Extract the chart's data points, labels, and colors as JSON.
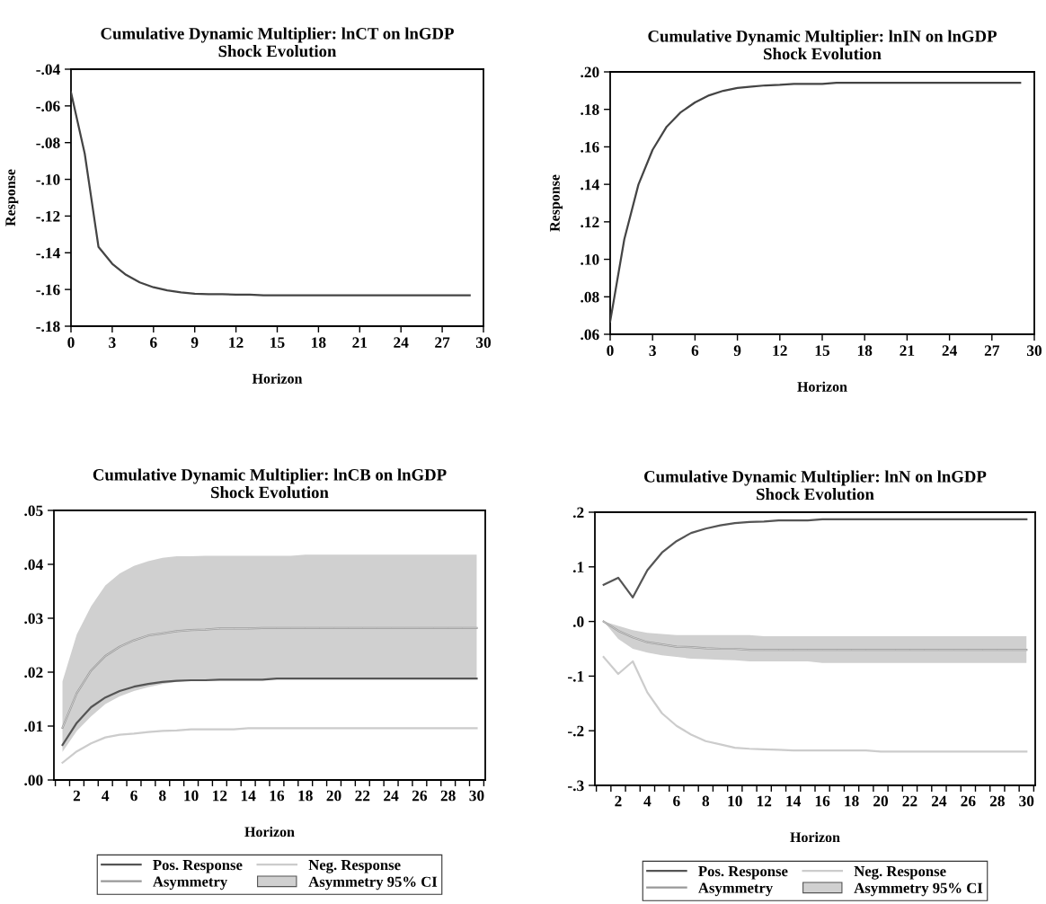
{
  "chart_data": [
    {
      "type": "line",
      "title": "Cumulative Dynamic Multiplier: lnCT on lnGDP",
      "subtitle": "Shock Evolution",
      "xlabel": "Horizon",
      "ylabel": "Response",
      "x": [
        0,
        1,
        2,
        3,
        4,
        5,
        6,
        7,
        8,
        9,
        10,
        11,
        12,
        13,
        14,
        15,
        16,
        17,
        18,
        19,
        20,
        21,
        22,
        23,
        24,
        25,
        26,
        27,
        28,
        29
      ],
      "series": [
        {
          "color": "#444444",
          "values": [
            -0.0526,
            -0.086,
            -0.1368,
            -0.146,
            -0.152,
            -0.1561,
            -0.1588,
            -0.1605,
            -0.1616,
            -0.1623,
            -0.1626,
            -0.1626,
            -0.1628,
            -0.1628,
            -0.1632,
            -0.1632,
            -0.1632,
            -0.1632,
            -0.1632,
            -0.1632,
            -0.1632,
            -0.1632,
            -0.1632,
            -0.1632,
            -0.1632,
            -0.1632,
            -0.1632,
            -0.1632,
            -0.1632,
            -0.1632
          ]
        }
      ],
      "xlim": [
        0,
        30
      ],
      "xticks": [
        0,
        3,
        6,
        9,
        12,
        15,
        18,
        21,
        24,
        27,
        30
      ],
      "ylim": [
        -0.18,
        -0.04
      ],
      "yticks": [
        {
          "value": -0.18,
          "label": "-.18"
        },
        {
          "value": -0.16,
          "label": "-.16"
        },
        {
          "value": -0.14,
          "label": "-.14"
        },
        {
          "value": -0.12,
          "label": "-.12"
        },
        {
          "value": -0.1,
          "label": "-.10"
        },
        {
          "value": -0.08,
          "label": "-.08"
        },
        {
          "value": -0.06,
          "label": "-.06"
        },
        {
          "value": -0.04,
          "label": "-.04"
        }
      ],
      "grid": false,
      "legend": false
    },
    {
      "type": "line",
      "title": "Cumulative Dynamic Multiplier: lnIN on lnGDP",
      "subtitle": "Shock Evolution",
      "xlabel": "Horizon",
      "ylabel": "Response",
      "x": [
        0,
        1,
        2,
        3,
        4,
        5,
        6,
        7,
        8,
        9,
        10,
        11,
        12,
        13,
        14,
        15,
        16,
        17,
        18,
        19,
        20,
        21,
        22,
        23,
        24,
        25,
        26,
        27,
        28,
        29
      ],
      "series": [
        {
          "color": "#444444",
          "values": [
            0.0668,
            0.1107,
            0.1399,
            0.1584,
            0.1708,
            0.1785,
            0.1837,
            0.1875,
            0.1899,
            0.1914,
            0.1921,
            0.1928,
            0.1931,
            0.1936,
            0.1936,
            0.1936,
            0.1942,
            0.1942,
            0.1942,
            0.1942,
            0.1942,
            0.1942,
            0.1942,
            0.1942,
            0.1942,
            0.1942,
            0.1942,
            0.1942,
            0.1942,
            0.1942
          ]
        }
      ],
      "xlim": [
        0,
        30
      ],
      "xticks": [
        0,
        3,
        6,
        9,
        12,
        15,
        18,
        21,
        24,
        27,
        30
      ],
      "ylim": [
        0.06,
        0.2
      ],
      "yticks": [
        {
          "value": 0.06,
          "label": ".06"
        },
        {
          "value": 0.08,
          "label": ".08"
        },
        {
          "value": 0.1,
          "label": ".10"
        },
        {
          "value": 0.12,
          "label": ".12"
        },
        {
          "value": 0.14,
          "label": ".14"
        },
        {
          "value": 0.16,
          "label": ".16"
        },
        {
          "value": 0.18,
          "label": ".18"
        },
        {
          "value": 0.2,
          "label": ".20"
        }
      ],
      "grid": false,
      "legend": false
    },
    {
      "type": "line",
      "title": "Cumulative Dynamic Multiplier: lnCB on lnGDP",
      "subtitle": "Shock Evolution",
      "xlabel": "Horizon",
      "x": [
        1,
        2,
        3,
        4,
        5,
        6,
        7,
        8,
        9,
        10,
        11,
        12,
        13,
        14,
        15,
        16,
        17,
        18,
        19,
        20,
        21,
        22,
        23,
        24,
        25,
        26,
        27,
        28,
        29,
        30
      ],
      "series": [
        {
          "name": "Pos. Response",
          "color": "#555555",
          "values": [
            0.0065,
            0.0106,
            0.0135,
            0.0153,
            0.0165,
            0.0173,
            0.0178,
            0.0182,
            0.0184,
            0.0185,
            0.0185,
            0.0186,
            0.0186,
            0.0186,
            0.0186,
            0.0188,
            0.0188,
            0.0188,
            0.0188,
            0.0188,
            0.0188,
            0.0188,
            0.0188,
            0.0188,
            0.0188,
            0.0188,
            0.0188,
            0.0188,
            0.0188,
            0.0188
          ]
        },
        {
          "name": "Neg. Response",
          "color": "#cccccc",
          "values": [
            0.0032,
            0.0053,
            0.0068,
            0.0079,
            0.0084,
            0.0086,
            0.0089,
            0.0091,
            0.0092,
            0.0094,
            0.0094,
            0.0094,
            0.0094,
            0.0096,
            0.0096,
            0.0096,
            0.0096,
            0.0096,
            0.0096,
            0.0096,
            0.0096,
            0.0096,
            0.0096,
            0.0096,
            0.0096,
            0.0096,
            0.0096,
            0.0096,
            0.0096,
            0.0096
          ]
        },
        {
          "name": "Asymmetry",
          "color": "#999999",
          "values": [
            0.0097,
            0.0161,
            0.0203,
            0.023,
            0.0247,
            0.0259,
            0.0268,
            0.0272,
            0.0276,
            0.0278,
            0.0279,
            0.0281,
            0.0281,
            0.0281,
            0.0282,
            0.0282,
            0.0282,
            0.0282,
            0.0282,
            0.0282,
            0.0282,
            0.0282,
            0.0282,
            0.0282,
            0.0282,
            0.0282,
            0.0282,
            0.0282,
            0.0282,
            0.0282
          ]
        },
        {
          "name": "Asymmetry 95% CI",
          "color": "#d0d0d0",
          "values": [
            0.0097,
            0.0161,
            0.0203,
            0.023,
            0.0247,
            0.0259,
            0.0268,
            0.0272,
            0.0276,
            0.0278,
            0.0279,
            0.0281,
            0.0281,
            0.0281,
            0.0282,
            0.0282,
            0.0282,
            0.0282,
            0.0282,
            0.0282,
            0.0282,
            0.0282,
            0.0282,
            0.0282,
            0.0282,
            0.0282,
            0.0282,
            0.0282,
            0.0282,
            0.0282
          ],
          "lower": [
            0.0052,
            0.0091,
            0.0118,
            0.0141,
            0.0155,
            0.0165,
            0.0172,
            0.0178,
            0.0182,
            0.0184,
            0.0185,
            0.0186,
            0.0186,
            0.0186,
            0.0186,
            0.0188,
            0.0188,
            0.0188,
            0.0188,
            0.0188,
            0.0188,
            0.0188,
            0.0188,
            0.0188,
            0.0188,
            0.0188,
            0.0188,
            0.0188,
            0.0188,
            0.0188
          ],
          "upper": [
            0.0183,
            0.027,
            0.0322,
            0.0361,
            0.0383,
            0.0397,
            0.0406,
            0.0412,
            0.0415,
            0.0415,
            0.0416,
            0.0416,
            0.0416,
            0.0416,
            0.0416,
            0.0416,
            0.0416,
            0.0418,
            0.0418,
            0.0418,
            0.0418,
            0.0418,
            0.0418,
            0.0418,
            0.0418,
            0.0418,
            0.0418,
            0.0418,
            0.0418,
            0.0418
          ]
        }
      ],
      "xlim": [
        0.4,
        30.6
      ],
      "xticks": [
        {
          "value": 0.5,
          "label": null
        },
        {
          "value": 1.5,
          "label": null
        },
        {
          "value": 2.5,
          "label": null
        },
        {
          "value": 3.5,
          "label": null
        },
        {
          "value": 4.5,
          "label": null
        },
        {
          "value": 5.5,
          "label": null
        },
        {
          "value": 6.5,
          "label": null
        },
        {
          "value": 7.5,
          "label": null
        },
        {
          "value": 8.5,
          "label": null
        },
        {
          "value": 9.5,
          "label": null
        },
        {
          "value": 10.5,
          "label": null
        },
        {
          "value": 11.5,
          "label": null
        },
        {
          "value": 12.5,
          "label": null
        },
        {
          "value": 13.5,
          "label": null
        },
        {
          "value": 14.5,
          "label": null
        },
        {
          "value": 15.5,
          "label": null
        },
        {
          "value": 16.5,
          "label": null
        },
        {
          "value": 17.5,
          "label": null
        },
        {
          "value": 18.5,
          "label": null
        },
        {
          "value": 19.5,
          "label": null
        },
        {
          "value": 20.5,
          "label": null
        },
        {
          "value": 21.5,
          "label": null
        },
        {
          "value": 22.5,
          "label": null
        },
        {
          "value": 23.5,
          "label": null
        },
        {
          "value": 24.5,
          "label": null
        },
        {
          "value": 25.5,
          "label": null
        },
        {
          "value": 26.5,
          "label": null
        },
        {
          "value": 27.5,
          "label": null
        },
        {
          "value": 28.5,
          "label": null
        },
        {
          "value": 29.5,
          "label": null
        },
        {
          "value": 30.5,
          "label": null
        },
        2,
        4,
        6,
        8,
        10,
        12,
        14,
        16,
        18,
        20,
        22,
        24,
        26,
        28,
        30
      ],
      "ylim": [
        0,
        0.05
      ],
      "yticks": [
        {
          "value": 0,
          "label": ".00"
        },
        {
          "value": 0.01,
          "label": ".01"
        },
        {
          "value": 0.02,
          "label": ".02"
        },
        {
          "value": 0.03,
          "label": ".03"
        },
        {
          "value": 0.04,
          "label": ".04"
        },
        {
          "value": 0.05,
          "label": ".05"
        }
      ],
      "grid": false,
      "legend": "bottom"
    },
    {
      "type": "line",
      "title": "Cumulative Dynamic Multiplier: lnN on lnGDP",
      "subtitle": "Shock Evolution",
      "xlabel": "Horizon",
      "x": [
        1,
        2,
        3,
        4,
        5,
        6,
        7,
        8,
        9,
        10,
        11,
        12,
        13,
        14,
        15,
        16,
        17,
        18,
        19,
        20,
        21,
        22,
        23,
        24,
        25,
        26,
        27,
        28,
        29,
        30
      ],
      "series": [
        {
          "name": "Pos. Response",
          "color": "#555555",
          "values": [
            0.067,
            0.08,
            0.044,
            0.094,
            0.126,
            0.147,
            0.162,
            0.17,
            0.176,
            0.18,
            0.182,
            0.183,
            0.185,
            0.185,
            0.185,
            0.187,
            0.187,
            0.187,
            0.187,
            0.187,
            0.187,
            0.187,
            0.187,
            0.187,
            0.187,
            0.187,
            0.187,
            0.187,
            0.187,
            0.187
          ]
        },
        {
          "name": "Neg. Response",
          "color": "#cccccc",
          "values": [
            -0.065,
            -0.096,
            -0.073,
            -0.13,
            -0.168,
            -0.191,
            -0.207,
            -0.219,
            -0.225,
            -0.231,
            -0.233,
            -0.234,
            -0.235,
            -0.236,
            -0.236,
            -0.236,
            -0.236,
            -0.236,
            -0.236,
            -0.238,
            -0.238,
            -0.238,
            -0.238,
            -0.238,
            -0.238,
            -0.238,
            -0.238,
            -0.238,
            -0.238,
            -0.238
          ]
        },
        {
          "name": "Asymmetry",
          "color": "#999999",
          "values": [
            0.0,
            -0.017,
            -0.029,
            -0.038,
            -0.042,
            -0.046,
            -0.047,
            -0.049,
            -0.05,
            -0.05,
            -0.052,
            -0.052,
            -0.052,
            -0.052,
            -0.052,
            -0.052,
            -0.052,
            -0.052,
            -0.052,
            -0.052,
            -0.052,
            -0.052,
            -0.052,
            -0.052,
            -0.052,
            -0.052,
            -0.052,
            -0.052,
            -0.052,
            -0.052
          ]
        },
        {
          "name": "Asymmetry 95% CI",
          "color": "#d0d0d0",
          "values": [
            0.0,
            -0.017,
            -0.029,
            -0.038,
            -0.042,
            -0.046,
            -0.047,
            -0.049,
            -0.05,
            -0.05,
            -0.052,
            -0.052,
            -0.052,
            -0.052,
            -0.052,
            -0.052,
            -0.052,
            -0.052,
            -0.052,
            -0.052,
            -0.052,
            -0.052,
            -0.052,
            -0.052,
            -0.052,
            -0.052,
            -0.052,
            -0.052,
            -0.052,
            -0.052
          ],
          "lower": [
            0.0,
            -0.032,
            -0.05,
            -0.057,
            -0.062,
            -0.065,
            -0.068,
            -0.069,
            -0.07,
            -0.071,
            -0.073,
            -0.073,
            -0.073,
            -0.073,
            -0.073,
            -0.076,
            -0.076,
            -0.076,
            -0.076,
            -0.076,
            -0.076,
            -0.076,
            -0.076,
            -0.076,
            -0.076,
            -0.076,
            -0.076,
            -0.076,
            -0.076,
            -0.076
          ],
          "upper": [
            0.0,
            -0.008,
            -0.016,
            -0.021,
            -0.023,
            -0.025,
            -0.025,
            -0.025,
            -0.025,
            -0.025,
            -0.025,
            -0.027,
            -0.027,
            -0.027,
            -0.027,
            -0.027,
            -0.027,
            -0.027,
            -0.027,
            -0.027,
            -0.027,
            -0.027,
            -0.027,
            -0.027,
            -0.027,
            -0.027,
            -0.027,
            -0.027,
            -0.027,
            -0.027
          ]
        }
      ],
      "xlim": [
        0.4,
        30.6
      ],
      "xticks": [
        {
          "value": 0.5,
          "label": null
        },
        {
          "value": 1.5,
          "label": null
        },
        {
          "value": 2.5,
          "label": null
        },
        {
          "value": 3.5,
          "label": null
        },
        {
          "value": 4.5,
          "label": null
        },
        {
          "value": 5.5,
          "label": null
        },
        {
          "value": 6.5,
          "label": null
        },
        {
          "value": 7.5,
          "label": null
        },
        {
          "value": 8.5,
          "label": null
        },
        {
          "value": 9.5,
          "label": null
        },
        {
          "value": 10.5,
          "label": null
        },
        {
          "value": 11.5,
          "label": null
        },
        {
          "value": 12.5,
          "label": null
        },
        {
          "value": 13.5,
          "label": null
        },
        {
          "value": 14.5,
          "label": null
        },
        {
          "value": 15.5,
          "label": null
        },
        {
          "value": 16.5,
          "label": null
        },
        {
          "value": 17.5,
          "label": null
        },
        {
          "value": 18.5,
          "label": null
        },
        {
          "value": 19.5,
          "label": null
        },
        {
          "value": 20.5,
          "label": null
        },
        {
          "value": 21.5,
          "label": null
        },
        {
          "value": 22.5,
          "label": null
        },
        {
          "value": 23.5,
          "label": null
        },
        {
          "value": 24.5,
          "label": null
        },
        {
          "value": 25.5,
          "label": null
        },
        {
          "value": 26.5,
          "label": null
        },
        {
          "value": 27.5,
          "label": null
        },
        {
          "value": 28.5,
          "label": null
        },
        {
          "value": 29.5,
          "label": null
        },
        {
          "value": 30.5,
          "label": null
        },
        2,
        4,
        6,
        8,
        10,
        12,
        14,
        16,
        18,
        20,
        22,
        24,
        26,
        28,
        30
      ],
      "ylim": [
        -0.3,
        0.2
      ],
      "yticks": [
        {
          "value": -0.3,
          "label": "-.3"
        },
        {
          "value": -0.2,
          "label": "-.2"
        },
        {
          "value": -0.1,
          "label": "-.1"
        },
        {
          "value": 0.0,
          "label": ".0"
        },
        {
          "value": 0.1,
          "label": ".1"
        },
        {
          "value": 0.2,
          "label": ".2"
        }
      ],
      "grid": false,
      "legend": "bottom"
    }
  ]
}
